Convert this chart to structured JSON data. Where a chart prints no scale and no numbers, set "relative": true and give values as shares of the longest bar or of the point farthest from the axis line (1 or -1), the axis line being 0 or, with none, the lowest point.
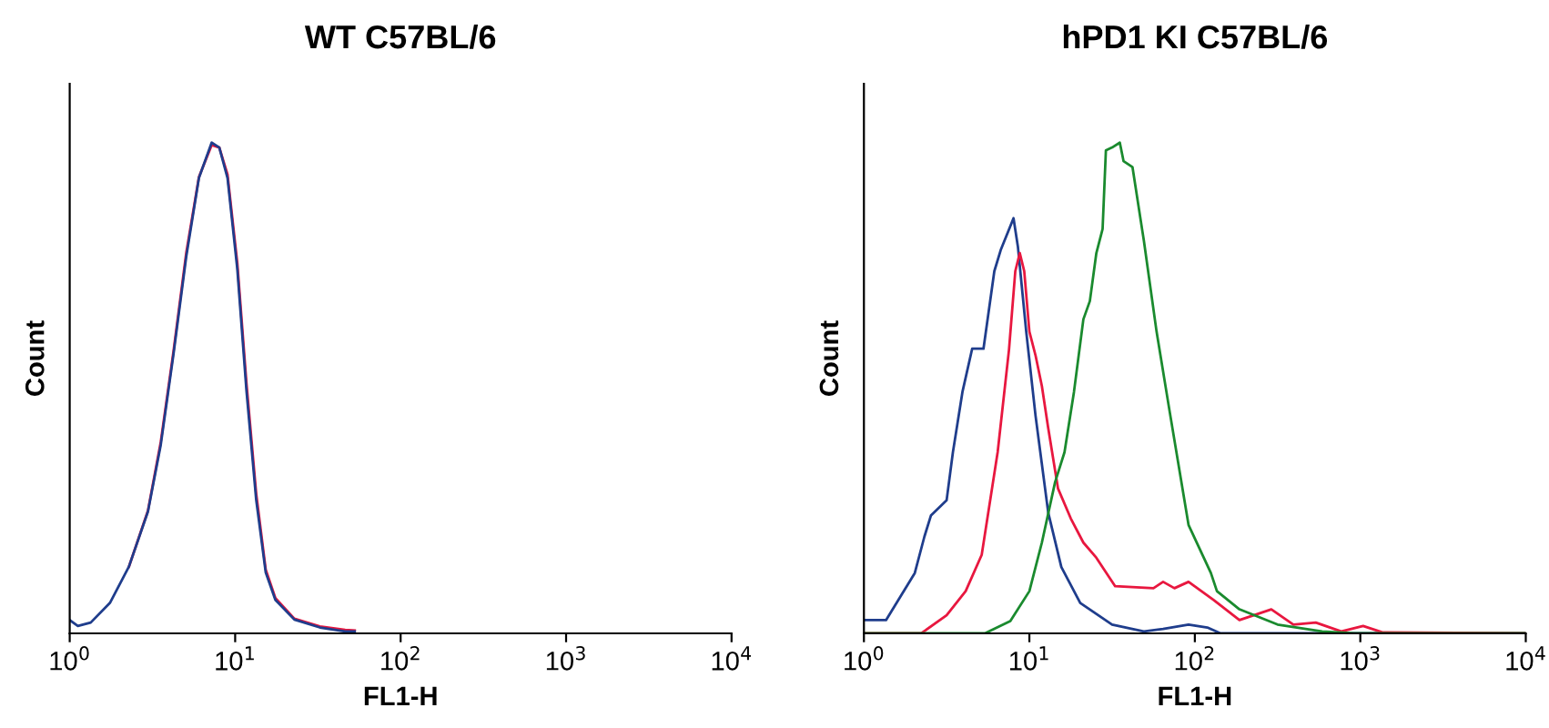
{
  "chart_data": [
    {
      "type": "line",
      "title": "WT C57BL/6",
      "xlabel": "FL1-H",
      "ylabel": "Count",
      "relative": true,
      "log": "x",
      "xlim": [
        1,
        10000
      ],
      "xticks": [
        {
          "value": 1,
          "label": "10$^{0}$"
        },
        {
          "value": 10,
          "label": "10$^{1}$"
        },
        {
          "value": 100,
          "label": "10$^{2}$"
        },
        {
          "value": 1000,
          "label": "10$^{3}$"
        },
        {
          "value": 10000,
          "label": "10$^{4}$"
        }
      ],
      "tick_labels": "x",
      "grid": false,
      "legend": false,
      "marker": "none",
      "line_style": "solid",
      "series": [
        {
          "color": "#e8173f",
          "x": [
            2.28,
            2.97,
            3.55,
            4.24,
            5.06,
            6.04,
            7.21,
            8.02,
            8.99,
            10.3,
            11.7,
            13.4,
            15.3,
            17.5,
            22.8,
            32.5,
            46.2,
            52.8
          ],
          "values": [
            0.136,
            0.25,
            0.39,
            0.575,
            0.775,
            0.93,
            0.995,
            0.99,
            0.935,
            0.755,
            0.51,
            0.285,
            0.13,
            0.072,
            0.03,
            0.014,
            0.007,
            0.006
          ]
        },
        {
          "color": "#1f3d8c",
          "x": [
            1,
            1.12,
            1.34,
            1.75,
            2.28,
            2.97,
            3.55,
            4.24,
            5.06,
            6.04,
            7.21,
            8.02,
            8.99,
            10.3,
            11.7,
            13.4,
            15.3,
            17.5,
            22.8,
            32.5,
            46.2,
            52.8
          ],
          "values": [
            0.027,
            0.015,
            0.022,
            0.062,
            0.136,
            0.248,
            0.384,
            0.569,
            0.767,
            0.928,
            1.0,
            0.99,
            0.928,
            0.743,
            0.495,
            0.272,
            0.124,
            0.068,
            0.028,
            0.012,
            0.004,
            0.004
          ]
        }
      ]
    },
    {
      "type": "line",
      "title": "hPD1 KI C57BL/6",
      "xlabel": "FL1-H",
      "ylabel": "Count",
      "relative": true,
      "log": "x",
      "xlim": [
        1,
        10000
      ],
      "xticks": [
        {
          "value": 1,
          "label": "10$^{0}$"
        },
        {
          "value": 10,
          "label": "10$^{1}$"
        },
        {
          "value": 100,
          "label": "10$^{2}$"
        },
        {
          "value": 1000,
          "label": "10$^{3}$"
        },
        {
          "value": 10000,
          "label": "10$^{4}$"
        }
      ],
      "tick_labels": "x",
      "grid": false,
      "legend": false,
      "marker": "none",
      "line_style": "solid",
      "series": [
        {
          "color": "#1f3d8c",
          "x": [
            1,
            1.36,
            2.03,
            2.32,
            2.54,
            3.16,
            3.45,
            3.94,
            4.51,
            5.28,
            6.14,
            6.71,
            8.02,
            8.53,
            9.57,
            10.9,
            13.0,
            15.6,
            20.3,
            31.6,
            49.2,
            64.3,
            91.6,
            119,
            143,
            10000
          ],
          "values": [
            0.027,
            0.027,
            0.123,
            0.197,
            0.24,
            0.271,
            0.369,
            0.492,
            0.58,
            0.58,
            0.738,
            0.781,
            0.846,
            0.787,
            0.615,
            0.443,
            0.246,
            0.135,
            0.062,
            0.018,
            0.004,
            0.009,
            0.018,
            0.012,
            0,
            0
          ]
        },
        {
          "color": "#e8173f",
          "x": [
            1,
            2.22,
            3.16,
            4.12,
            5.15,
            6.43,
            7.53,
            8.22,
            8.75,
            9.31,
            10,
            10.9,
            11.9,
            13.0,
            14.9,
            17.8,
            21.2,
            25.4,
            33.0,
            56.2,
            64.3,
            75.3,
            91.6,
            130,
            186,
            290,
            394,
            538,
            767,
            1040,
            1360,
            10000
          ],
          "values": [
            0,
            0,
            0.037,
            0.086,
            0.16,
            0.369,
            0.578,
            0.738,
            0.775,
            0.738,
            0.615,
            0.566,
            0.504,
            0.418,
            0.295,
            0.234,
            0.185,
            0.154,
            0.096,
            0.092,
            0.105,
            0.092,
            0.105,
            0.068,
            0.027,
            0.049,
            0.018,
            0.022,
            0.004,
            0.015,
            0.002,
            0
          ]
        },
        {
          "color": "#1a8a2e",
          "x": [
            1,
            5.38,
            7.67,
            10,
            11.9,
            14.3,
            16.3,
            18.6,
            21.2,
            23.2,
            25.4,
            27.7,
            29.0,
            31.6,
            35.2,
            37.1,
            42.0,
            49.2,
            58.7,
            70.2,
            91.6,
            125,
            136,
            186,
            316,
            588,
            916,
            10000
          ],
          "values": [
            0,
            0,
            0.025,
            0.086,
            0.185,
            0.308,
            0.369,
            0.492,
            0.64,
            0.677,
            0.775,
            0.824,
            0.984,
            0.99,
            1.0,
            0.962,
            0.95,
            0.8,
            0.615,
            0.455,
            0.221,
            0.123,
            0.086,
            0.049,
            0.018,
            0.004,
            0,
            0
          ]
        }
      ]
    }
  ]
}
